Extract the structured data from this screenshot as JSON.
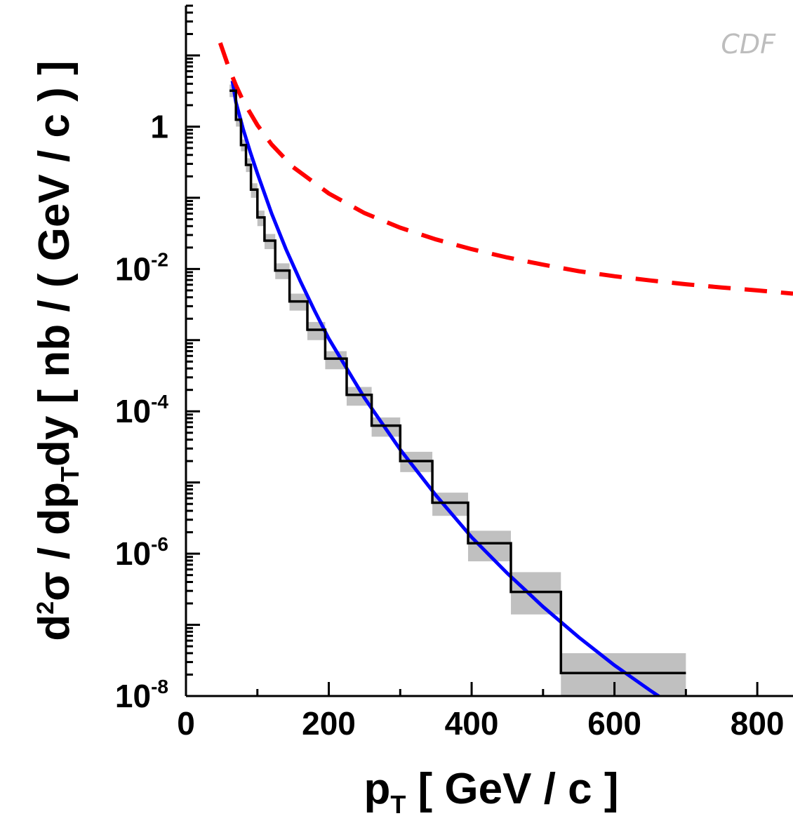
{
  "chart_data": {
    "type": "line",
    "watermark": "CDF",
    "xlabel": {
      "main": "p",
      "sub": "T",
      "unit": " [ GeV / c ]"
    },
    "ylabel": {
      "d": "d",
      "sup": "2",
      "sigma": "σ / dp",
      "sub": "T",
      "rest": "dy [ nb / ( GeV / c ) ]"
    },
    "xlim": [
      0,
      850
    ],
    "ylim_log10": [
      -8,
      1.7
    ],
    "y_scale": "log",
    "grid": false,
    "x_ticks": [
      {
        "value": 0,
        "label": "0"
      },
      {
        "value": 200,
        "label": "200"
      },
      {
        "value": 400,
        "label": "400"
      },
      {
        "value": 600,
        "label": "600"
      },
      {
        "value": 800,
        "label": "800"
      }
    ],
    "y_ticks": [
      {
        "exp": 0,
        "base": "1",
        "sup": ""
      },
      {
        "exp": -2,
        "base": "10",
        "sup": "-2"
      },
      {
        "exp": -4,
        "base": "10",
        "sup": "-4"
      },
      {
        "exp": -6,
        "base": "10",
        "sup": "-6"
      },
      {
        "exp": -8,
        "base": "10",
        "sup": "-8"
      }
    ],
    "colors": {
      "data_histogram": "#000000",
      "systematic_band": "#c0c0c0",
      "solid_curve": "#0000ff",
      "dashed_curve": "#ff0000"
    },
    "histogram": {
      "bin_edges": [
        61,
        70,
        77,
        84,
        91,
        100,
        110,
        125,
        145,
        170,
        195,
        225,
        260,
        300,
        345,
        395,
        455,
        525,
        700
      ],
      "values": [
        3.2,
        1.25,
        0.55,
        0.29,
        0.13,
        0.053,
        0.025,
        0.0095,
        0.0035,
        0.0014,
        0.00055,
        0.00017,
        6.3e-05,
        2e-05,
        5.2e-06,
        1.4e-06,
        2.9e-07,
        2.1e-08
      ],
      "band_low": [
        2.6,
        1.0,
        0.45,
        0.23,
        0.1,
        0.04,
        0.019,
        0.0072,
        0.0026,
        0.001,
        0.00039,
        0.00012,
        4.4e-05,
        1.4e-05,
        3.4e-06,
        7.8e-07,
        1.4e-07,
        3.5e-09
      ],
      "band_high": [
        3.9,
        1.5,
        0.66,
        0.36,
        0.16,
        0.066,
        0.031,
        0.012,
        0.0045,
        0.0018,
        0.0007,
        0.00022,
        8.2e-05,
        2.7e-05,
        7.2e-06,
        2.1e-06,
        5.5e-07,
        4e-08
      ]
    },
    "solid_curve": {
      "x": [
        65,
        70,
        80,
        90,
        100,
        120,
        140,
        160,
        180,
        200,
        250,
        300,
        350,
        400,
        450,
        500,
        550,
        600,
        650,
        700,
        750,
        800,
        850
      ],
      "y": [
        4.4,
        2.2,
        0.93,
        0.44,
        0.22,
        0.06,
        0.019,
        0.0068,
        0.0026,
        0.00105,
        0.000154,
        2.9e-05,
        6.6e-06,
        1.7e-06,
        5.3e-07,
        1.8e-07,
        6.7e-08,
        2.7e-08,
        1.2e-08,
        5.5e-09,
        2.7e-09,
        1.4e-09,
        7e-10
      ]
    },
    "dashed_curve": {
      "x": [
        48,
        60,
        70,
        80,
        100,
        120,
        150,
        200,
        250,
        300,
        350,
        400,
        450,
        500,
        550,
        600,
        650,
        700,
        750,
        800,
        850
      ],
      "y": [
        15,
        6.7,
        3.8,
        2.3,
        1.05,
        0.56,
        0.27,
        0.115,
        0.061,
        0.038,
        0.026,
        0.019,
        0.0145,
        0.0115,
        0.0093,
        0.0079,
        0.0069,
        0.0061,
        0.0055,
        0.005,
        0.0045
      ]
    }
  }
}
